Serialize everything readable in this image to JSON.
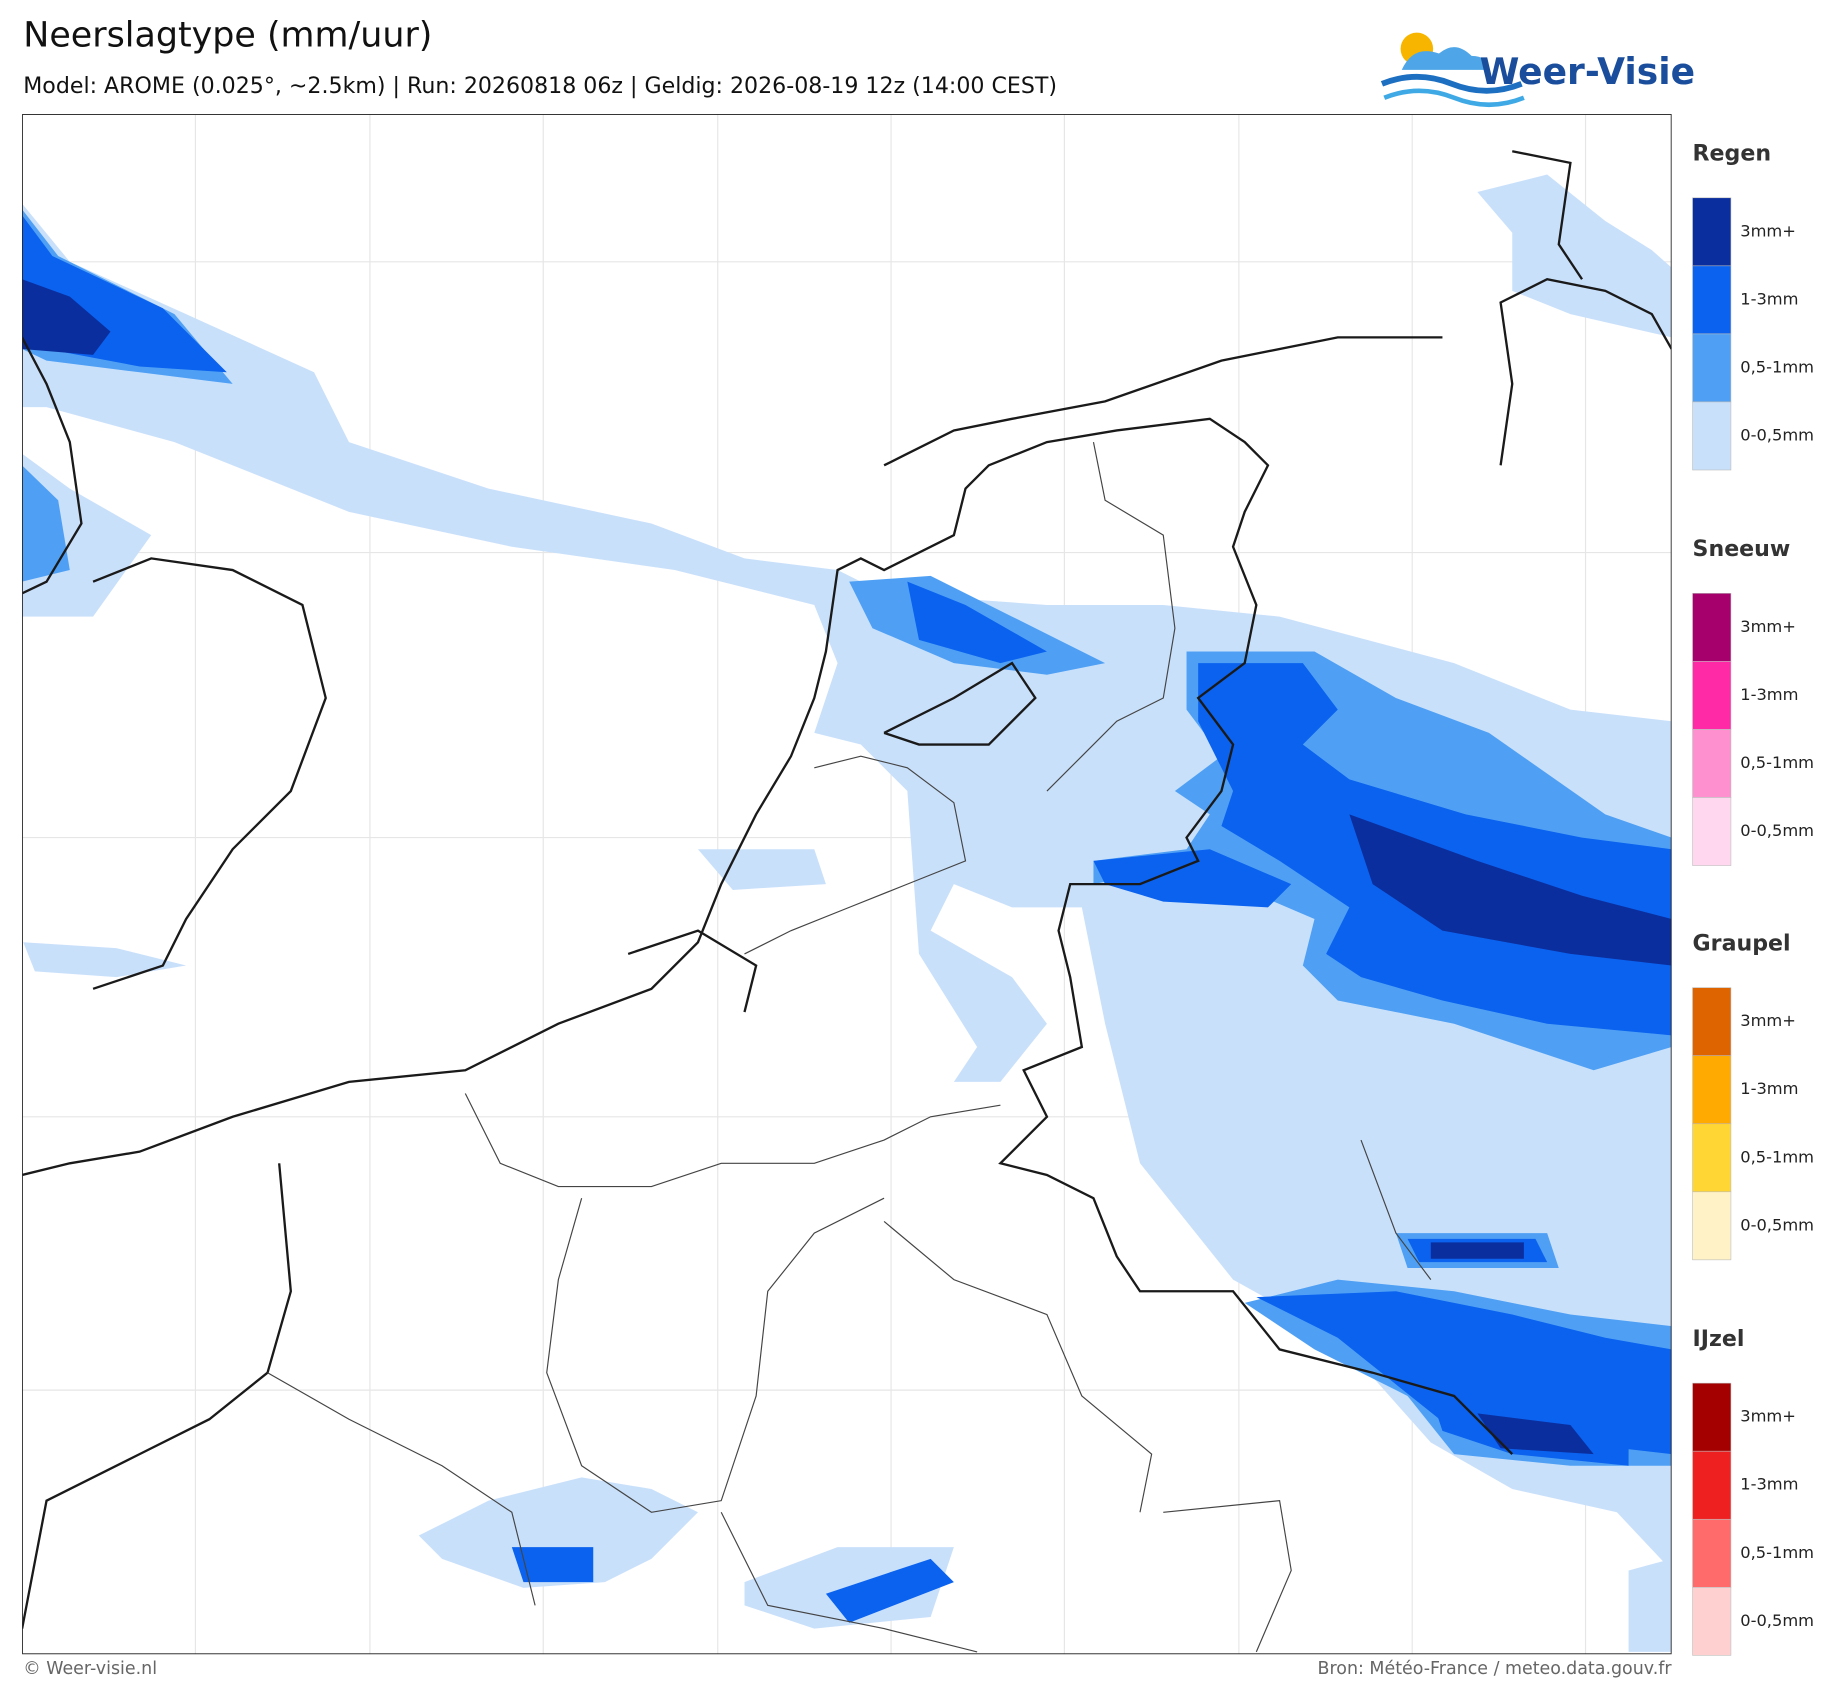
{
  "header": {
    "title": "Neerslagtype (mm/uur)",
    "subtitle": "Model: AROME (0.025°, ~2.5km)  |  Run: 20260818 06z  |  Geldig: 2026-08-19 12z (14:00 CEST)",
    "logo": "Weer-Visie"
  },
  "legend": [
    {
      "title": "Regen",
      "items": [
        {
          "label": "3mm+",
          "color": "#0a2e9e"
        },
        {
          "label": "1-3mm",
          "color": "#0a62ef"
        },
        {
          "label": "0,5-1mm",
          "color": "#4fa0f4"
        },
        {
          "label": "0-0,5mm",
          "color": "#c9e0fb"
        }
      ]
    },
    {
      "title": "Sneeuw",
      "items": [
        {
          "label": "3mm+",
          "color": "#a6006c"
        },
        {
          "label": "1-3mm",
          "color": "#ff2aa6"
        },
        {
          "label": "0,5-1mm",
          "color": "#ff90cf"
        },
        {
          "label": "0-0,5mm",
          "color": "#ffd7ee"
        }
      ]
    },
    {
      "title": "Graupel",
      "items": [
        {
          "label": "3mm+",
          "color": "#de6400"
        },
        {
          "label": "1-3mm",
          "color": "#ffaa00"
        },
        {
          "label": "0,5-1mm",
          "color": "#ffd633"
        },
        {
          "label": "0-0,5mm",
          "color": "#fff2c6"
        }
      ]
    },
    {
      "title": "IJzel",
      "items": [
        {
          "label": "3mm+",
          "color": "#a40000"
        },
        {
          "label": "1-3mm",
          "color": "#ee2020"
        },
        {
          "label": "0,5-1mm",
          "color": "#ff6a6a"
        },
        {
          "label": "0-0,5mm",
          "color": "#ffd0d0"
        }
      ]
    }
  ],
  "footer": {
    "left": "© Weer-visie.nl",
    "right": "Bron: Météo-France / meteo.data.gouv.fr"
  }
}
